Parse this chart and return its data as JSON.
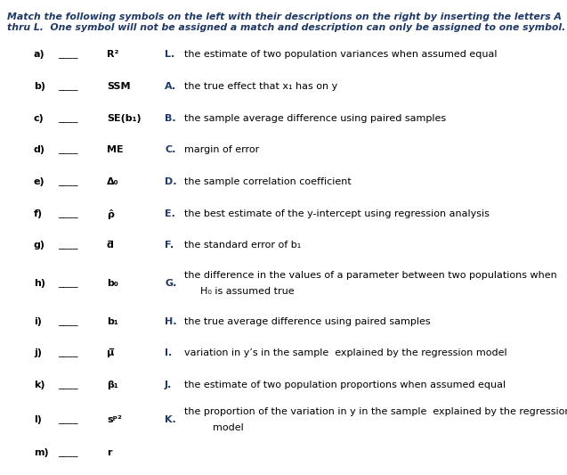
{
  "title_line1": "Match the following symbols on the left with their descriptions on the right by inserting the letters A",
  "title_line2": "thru L.  One symbol will not be assigned a match and description can only be assigned to one symbol.",
  "bg_color": "#ffffff",
  "title_color": "#1f3864",
  "text_color": "#000000",
  "label_color": "#1f3864",
  "rows": [
    {
      "letter": "a)",
      "symbol": "R²",
      "label": "L.",
      "text": "the estimate of two population variances when assumed equal"
    },
    {
      "letter": "b)",
      "symbol": "SSM",
      "label": "A.",
      "text": "the true effect that x₁ has on y"
    },
    {
      "letter": "c)",
      "symbol": "SE(b₁)",
      "label": "B.",
      "text": "the sample average difference using paired samples"
    },
    {
      "letter": "d)",
      "symbol": "ME",
      "label": "C.",
      "text": "margin of error"
    },
    {
      "letter": "e)",
      "symbol": "Δ₀",
      "label": "D.",
      "text": "the sample correlation coefficient"
    },
    {
      "letter": "f)",
      "symbol": "ρ̂",
      "label": "E.",
      "text": "the best estimate of the y-intercept using regression analysis"
    },
    {
      "letter": "g)",
      "symbol": "d̅",
      "label": "F.",
      "text": "the standard error of b₁"
    },
    {
      "letter": "h)",
      "symbol": "b₀",
      "label": "G.",
      "text": "the difference in the values of a parameter between two populations when",
      "text2": "H₀ is assumed true"
    },
    {
      "letter": "i)",
      "symbol": "b₁",
      "label": "H.",
      "text": "the true average difference using paired samples"
    },
    {
      "letter": "j)",
      "symbol": "μ̅",
      "label": "I.",
      "text": "variation in y’s in the sample  explained by the regression model"
    },
    {
      "letter": "k)",
      "symbol": "β₁",
      "label": "J.",
      "text": "the estimate of two population proportions when assumed equal"
    },
    {
      "letter": "l)",
      "symbol": "sᵖ²",
      "label": "K.",
      "text": "the proportion of the variation in y in the sample  explained by the regression",
      "text2": "    model"
    },
    {
      "letter": "m)",
      "symbol": "r",
      "label": "",
      "text": ""
    }
  ],
  "title_fontsize": 7.8,
  "item_fontsize": 8.0,
  "fig_width": 6.37,
  "fig_height": 5.33,
  "dpi": 100
}
